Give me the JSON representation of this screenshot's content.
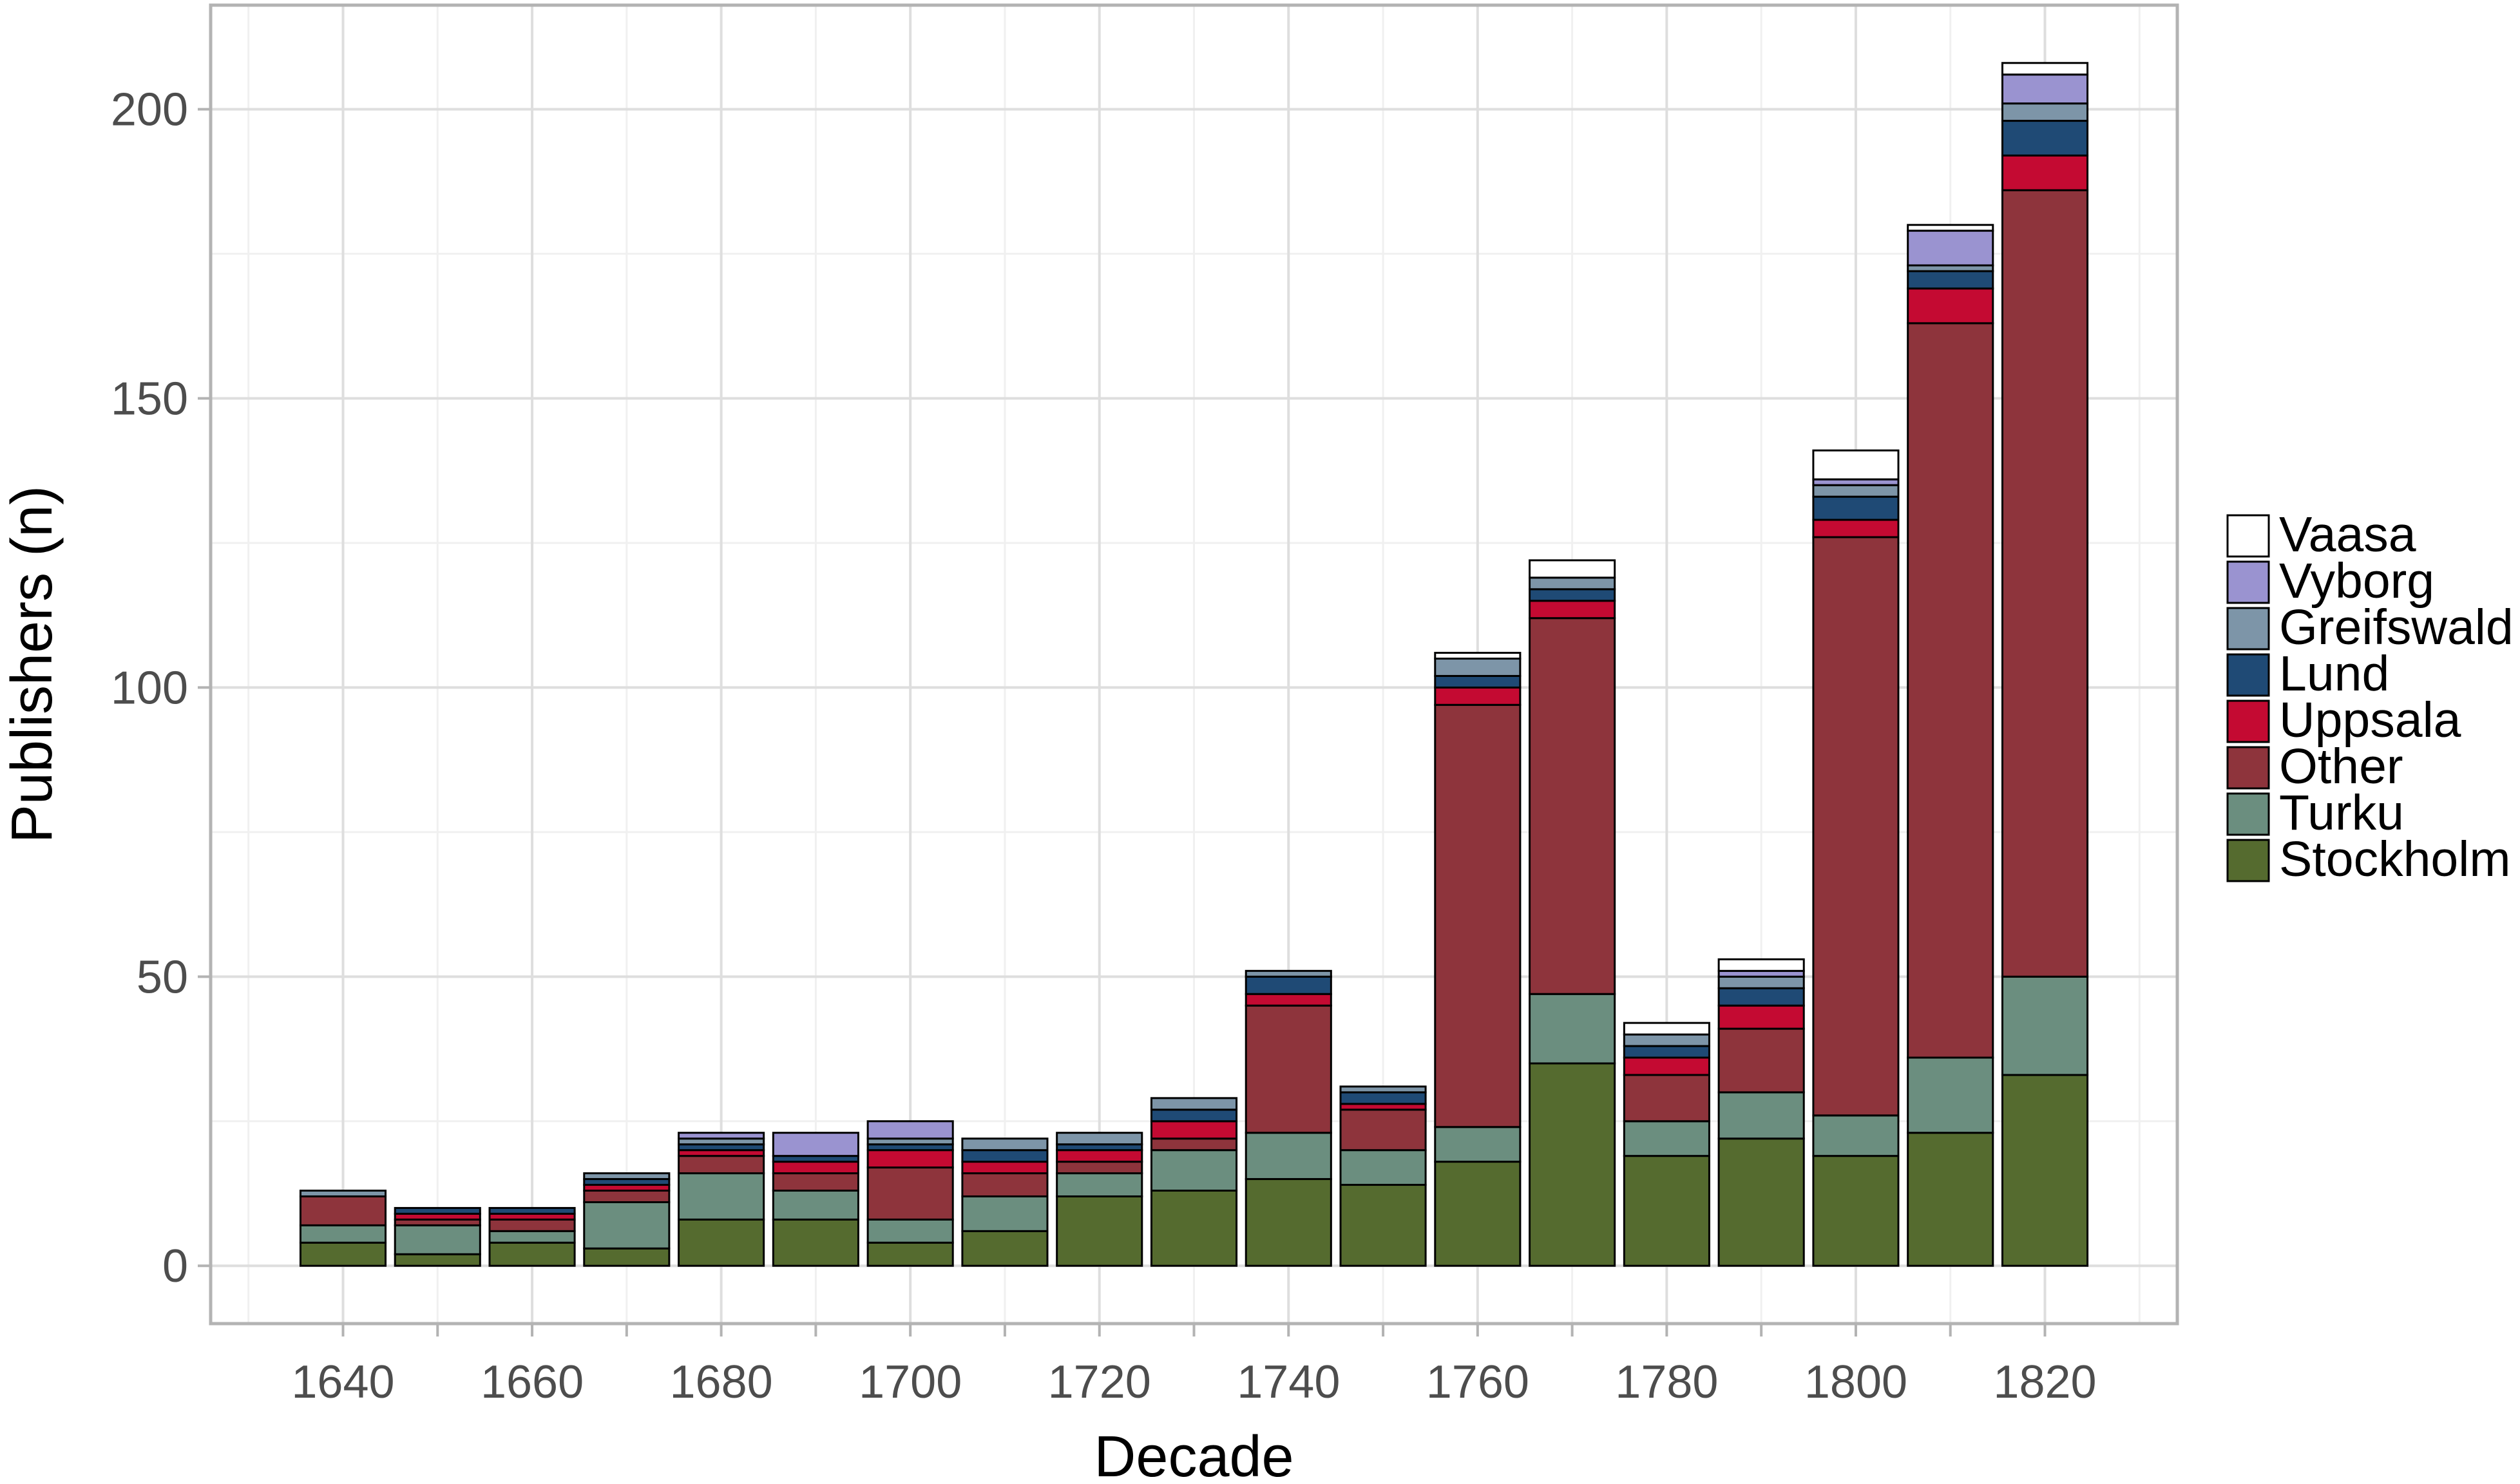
{
  "chart_data": {
    "type": "bar",
    "stacked": true,
    "title": "",
    "xlabel": "Decade",
    "ylabel": "Publishers (n)",
    "categories": [
      "1640",
      "1650",
      "1660",
      "1670",
      "1680",
      "1690",
      "1700",
      "1710",
      "1720",
      "1730",
      "1740",
      "1750",
      "1760",
      "1770",
      "1780",
      "1790",
      "1800",
      "1810",
      "1820"
    ],
    "x_ticks": [
      "1640",
      "1660",
      "1680",
      "1700",
      "1720",
      "1740",
      "1760",
      "1780",
      "1800",
      "1820"
    ],
    "y_ticks": [
      0,
      50,
      100,
      150,
      200
    ],
    "ylim": [
      -10,
      218
    ],
    "xlim": [
      1626,
      1834
    ],
    "grid": true,
    "legend_position": "right",
    "series": [
      {
        "name": "Stockholm",
        "color": "#556B2F",
        "values": [
          4,
          2,
          4,
          3,
          8,
          8,
          4,
          6,
          12,
          13,
          15,
          14,
          18,
          35,
          19,
          22,
          19,
          23,
          33
        ]
      },
      {
        "name": "Turku",
        "color": "#6B8E7F",
        "values": [
          3,
          5,
          2,
          8,
          8,
          5,
          4,
          6,
          4,
          7,
          8,
          6,
          6,
          12,
          6,
          8,
          7,
          13,
          17
        ]
      },
      {
        "name": "Other",
        "color": "#8E343C",
        "values": [
          5,
          1,
          2,
          2,
          3,
          3,
          9,
          4,
          2,
          2,
          22,
          7,
          73,
          65,
          8,
          11,
          100,
          127,
          136
        ]
      },
      {
        "name": "Uppsala",
        "color": "#C40A32",
        "values": [
          0,
          1,
          1,
          1,
          1,
          2,
          3,
          2,
          2,
          3,
          2,
          1,
          3,
          3,
          3,
          4,
          3,
          6,
          6
        ]
      },
      {
        "name": "Lund",
        "color": "#1F4A75",
        "values": [
          0,
          1,
          1,
          1,
          1,
          1,
          1,
          2,
          1,
          2,
          3,
          2,
          2,
          2,
          2,
          3,
          4,
          3,
          6
        ]
      },
      {
        "name": "Greifswald",
        "color": "#7D95A8",
        "values": [
          1,
          0,
          0,
          1,
          1,
          0,
          1,
          2,
          2,
          2,
          1,
          1,
          3,
          2,
          2,
          2,
          2,
          1,
          3
        ]
      },
      {
        "name": "Vyborg",
        "color": "#9A93D0",
        "values": [
          0,
          0,
          0,
          0,
          1,
          4,
          3,
          0,
          0,
          0,
          0,
          0,
          0,
          0,
          0,
          1,
          1,
          6,
          5
        ]
      },
      {
        "name": "Vaasa",
        "color": "#FFFFFF",
        "values": [
          0,
          0,
          0,
          0,
          0,
          0,
          0,
          0,
          0,
          0,
          0,
          0,
          1,
          3,
          2,
          2,
          5,
          1,
          2
        ]
      }
    ],
    "legend_order": [
      "Vaasa",
      "Vyborg",
      "Greifswald",
      "Lund",
      "Uppsala",
      "Other",
      "Turku",
      "Stockholm"
    ]
  }
}
